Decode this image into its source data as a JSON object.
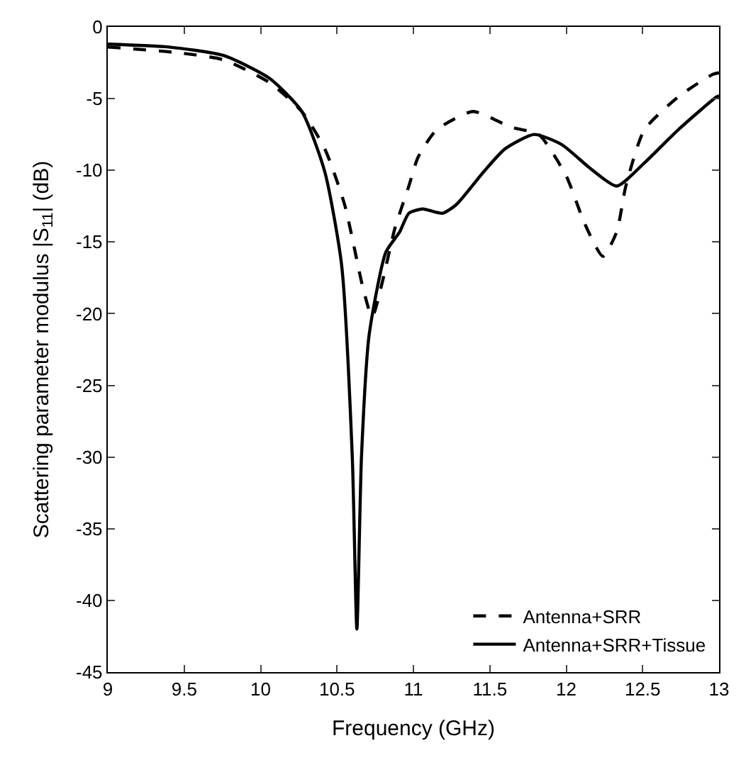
{
  "chart_data": {
    "type": "line",
    "xlabel": "Frequency (GHz)",
    "ylabel": "Scattering parameter modulus |S$_{11}$| (dB)",
    "xlim": [
      9,
      13
    ],
    "ylim": [
      -45,
      0
    ],
    "xticks": [
      9,
      9.5,
      10,
      10.5,
      11,
      11.5,
      12,
      12.5,
      13
    ],
    "yticks": [
      -45,
      -40,
      -35,
      -30,
      -25,
      -20,
      -15,
      -10,
      -5,
      0
    ],
    "legend": "bottom right",
    "series": [
      {
        "name": "Antenna+SRR",
        "color": "#000000",
        "line_style": "dashed",
        "x": [
          9,
          9.46,
          9.76,
          10.06,
          10.27,
          10.42,
          10.55,
          10.67,
          10.73,
          10.88,
          10.97,
          11.03,
          11.15,
          11.39,
          11.64,
          11.82,
          12.0,
          12.12,
          12.24,
          12.33,
          12.39,
          12.51,
          12.73,
          12.96,
          13
        ],
        "values": [
          -1.4,
          -1.8,
          -2.3,
          -3.9,
          -5.9,
          -8.5,
          -12.4,
          -18.2,
          -20.2,
          -14.0,
          -11.1,
          -9.1,
          -7.2,
          -5.9,
          -7.0,
          -7.5,
          -10.4,
          -13.7,
          -16.0,
          -14.3,
          -11.1,
          -7.2,
          -4.9,
          -3.3,
          -3.2
        ]
      },
      {
        "name": "Antenna+SRR+Tissue",
        "color": "#000000",
        "line_style": "solid",
        "x": [
          9,
          9.4,
          9.76,
          10.06,
          10.27,
          10.42,
          10.53,
          10.6,
          10.63,
          10.66,
          10.71,
          10.82,
          10.91,
          10.97,
          11.06,
          11.19,
          11.28,
          11.46,
          11.6,
          11.79,
          11.97,
          12.15,
          12.33,
          12.51,
          12.73,
          12.98,
          13
        ],
        "values": [
          -1.2,
          -1.4,
          -2.0,
          -3.6,
          -5.9,
          -10.1,
          -16.6,
          -30,
          -42.0,
          -30,
          -21.5,
          -15.7,
          -14.3,
          -13.0,
          -12.7,
          -13.0,
          -12.4,
          -10.1,
          -8.5,
          -7.5,
          -8.2,
          -9.8,
          -11.1,
          -9.5,
          -7.2,
          -4.9,
          -4.8
        ]
      }
    ]
  }
}
